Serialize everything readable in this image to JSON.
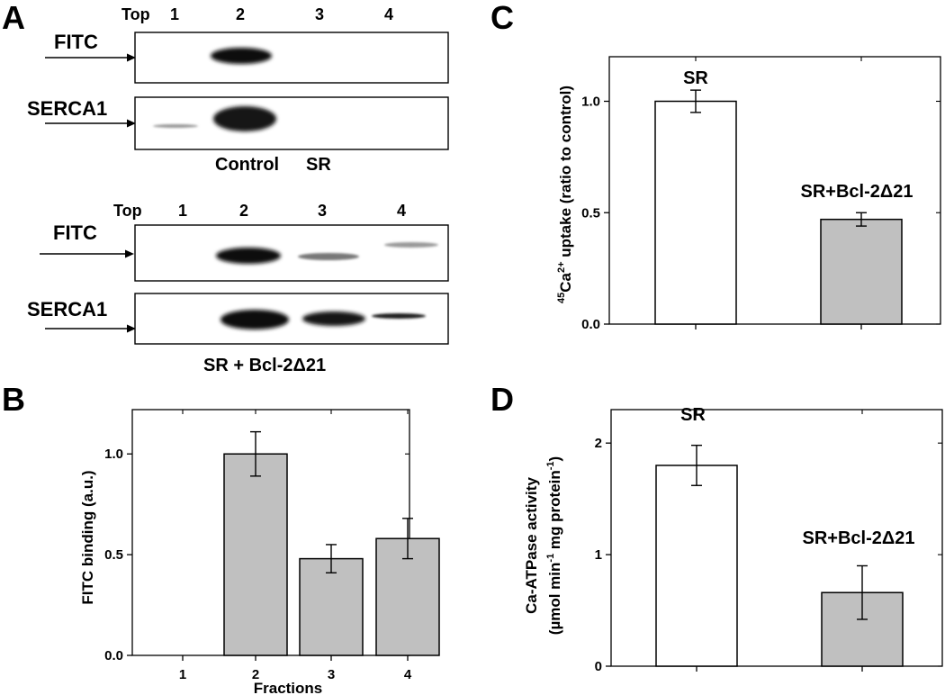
{
  "panels": {
    "a": "A",
    "b": "B",
    "c": "C",
    "d": "D"
  },
  "blots": {
    "lane_labels": [
      "Top",
      "1",
      "2",
      "3",
      "4"
    ],
    "control": {
      "rows": [
        "FITC",
        "SERCA1"
      ],
      "caption_1": "Control",
      "caption_2": "SR"
    },
    "bcl": {
      "rows": [
        "FITC",
        "SERCA1"
      ],
      "caption": "SR + Bcl-2Δ21"
    }
  },
  "chart_data": [
    {
      "panel": "B",
      "type": "bar",
      "categories": [
        "1",
        "2",
        "3",
        "4"
      ],
      "values": [
        0,
        1.0,
        0.48,
        0.58
      ],
      "errors": [
        0,
        0.11,
        0.07,
        0.1
      ],
      "xlabel": "Fractions",
      "ylabel": "FITC binding (a.u.)",
      "ylim": [
        0,
        1.22
      ],
      "yticks": [
        "0.0",
        "0.5",
        "1.0"
      ],
      "bar_color": "#c0c0c0"
    },
    {
      "panel": "C",
      "type": "bar",
      "categories": [
        "SR",
        "SR+Bcl-2Δ21"
      ],
      "values": [
        1.0,
        0.47
      ],
      "errors": [
        0.05,
        0.03
      ],
      "ylabel": "Ca2+ uptake (ratio to control)",
      "ylabel_parts": [
        "45",
        "Ca",
        "2+",
        " uptake (ratio to control)"
      ],
      "ylim": [
        0,
        1.2
      ],
      "yticks": [
        "0.0",
        "0.5",
        "1.0"
      ],
      "bar_colors": [
        "#ffffff",
        "#c0c0c0"
      ]
    },
    {
      "panel": "D",
      "type": "bar",
      "categories": [
        "SR",
        "SR+Bcl-2Δ21"
      ],
      "values": [
        1.8,
        0.66
      ],
      "errors": [
        0.18,
        0.24
      ],
      "ylabel_line1": "Ca-ATPase activity",
      "ylabel_line2_parts": [
        "(µmol min",
        "-1",
        " mg protein",
        "-1",
        ")"
      ],
      "ylim": [
        0,
        2.3
      ],
      "yticks": [
        "0",
        "1",
        "2"
      ],
      "bar_colors": [
        "#ffffff",
        "#c0c0c0"
      ]
    }
  ]
}
